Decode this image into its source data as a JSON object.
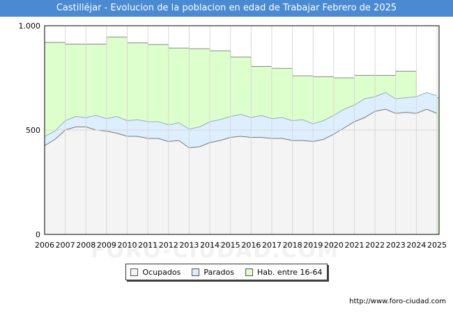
{
  "page": {
    "watermark": "FORO-CIUDAD.COM",
    "footer_url": "http://www.foro-ciudad.com"
  },
  "chart_data": {
    "type": "area",
    "title": "Castilléjar - Evolucion de la poblacion en edad de Trabajar Febrero de 2025",
    "xlabel": "",
    "ylabel": "",
    "xlim": [
      2006,
      2025.1
    ],
    "ylim": [
      0,
      1000
    ],
    "y_ticks": [
      0,
      500,
      1000
    ],
    "y_tick_labels": [
      "0",
      "500",
      "1.000"
    ],
    "x_tick_labels": [
      "2006",
      "2007",
      "2008",
      "2009",
      "2010",
      "2011",
      "2012",
      "2013",
      "2014",
      "2015",
      "2016",
      "2017",
      "2018",
      "2019",
      "2020",
      "2021",
      "2022",
      "2023",
      "2024",
      "2025"
    ],
    "grid": true,
    "legend_position": "bottom",
    "colors": {
      "ocupados_fill": "#f4f4f4",
      "parados_fill": "#ddeeff",
      "hab_fill": "#ddffcc",
      "line": "#888888",
      "grid": "#d8d8d8"
    },
    "series": [
      {
        "name": "Hab. entre 16-64",
        "x": [
          2006,
          2007,
          2008,
          2009,
          2010,
          2011,
          2012,
          2013,
          2014,
          2015,
          2016,
          2017,
          2018,
          2019,
          2020,
          2021,
          2022,
          2023,
          2024
        ],
        "values": [
          920,
          912,
          912,
          946,
          918,
          910,
          893,
          890,
          880,
          850,
          805,
          796,
          760,
          756,
          750,
          762,
          762,
          782,
          655
        ]
      },
      {
        "name": "Parados",
        "x": [
          2006,
          2006.5,
          2007,
          2007.5,
          2008,
          2008.5,
          2009,
          2009.5,
          2010,
          2010.5,
          2011,
          2011.5,
          2012,
          2012.5,
          2013,
          2013.5,
          2014,
          2014.5,
          2015,
          2015.5,
          2016,
          2016.5,
          2017,
          2017.5,
          2018,
          2018.5,
          2019,
          2019.5,
          2020,
          2020.5,
          2021,
          2021.5,
          2022,
          2022.5,
          2023,
          2023.5,
          2024,
          2024.5,
          2025
        ],
        "values": [
          470,
          495,
          545,
          565,
          560,
          570,
          555,
          565,
          545,
          550,
          540,
          540,
          525,
          535,
          505,
          515,
          540,
          550,
          565,
          575,
          560,
          570,
          555,
          560,
          545,
          550,
          530,
          545,
          570,
          600,
          620,
          650,
          660,
          680,
          650,
          655,
          660,
          680,
          665
        ]
      },
      {
        "name": "Ocupados",
        "x": [
          2006,
          2006.5,
          2007,
          2007.5,
          2008,
          2008.5,
          2009,
          2009.5,
          2010,
          2010.5,
          2011,
          2011.5,
          2012,
          2012.5,
          2013,
          2013.5,
          2014,
          2014.5,
          2015,
          2015.5,
          2016,
          2016.5,
          2017,
          2017.5,
          2018,
          2018.5,
          2019,
          2019.5,
          2020,
          2020.5,
          2021,
          2021.5,
          2022,
          2022.5,
          2023,
          2023.5,
          2024,
          2024.5,
          2025
        ],
        "values": [
          425,
          455,
          500,
          515,
          515,
          500,
          495,
          485,
          470,
          470,
          460,
          460,
          445,
          450,
          415,
          420,
          440,
          450,
          465,
          470,
          465,
          465,
          460,
          460,
          450,
          450,
          445,
          455,
          480,
          510,
          540,
          560,
          590,
          600,
          580,
          585,
          580,
          600,
          580
        ]
      }
    ],
    "legend": [
      "Ocupados",
      "Parados",
      "Hab. entre 16-64"
    ]
  }
}
